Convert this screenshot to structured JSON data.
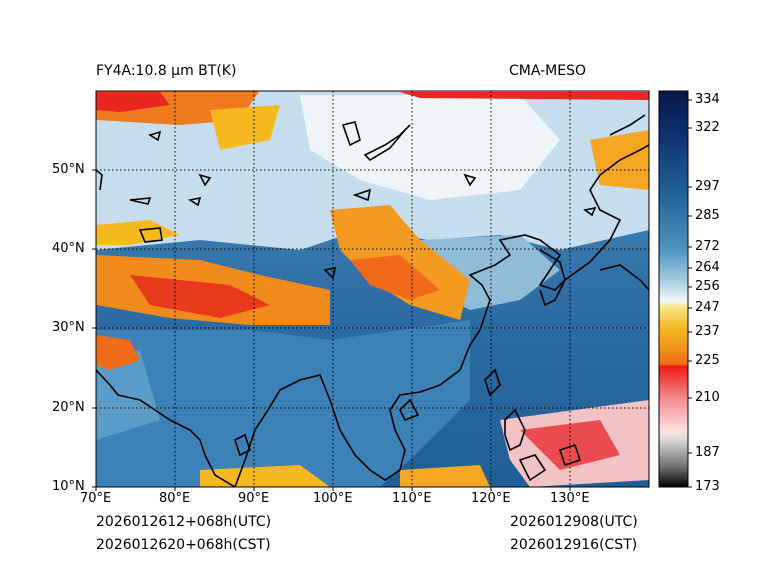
{
  "header": {
    "left_title": "FY4A:10.8 µm BT(K)",
    "right_title": "CMA-MESO"
  },
  "footer": {
    "init_utc": "2026012612+068h(UTC)",
    "init_cst": "2026012620+068h(CST)",
    "valid_utc": "2026012908(UTC)",
    "valid_cst": "2026012916(CST)"
  },
  "map": {
    "lon_labels": [
      "70°E",
      "80°E",
      "90°E",
      "100°E",
      "110°E",
      "120°E",
      "130°E"
    ],
    "lat_labels": [
      "50°N",
      "40°N",
      "30°N",
      "20°N",
      "10°N"
    ],
    "extent": {
      "lon_min": 70,
      "lon_max": 140,
      "lat_min": 10,
      "lat_max": 60
    }
  },
  "colorbar": {
    "ticks": [
      "334",
      "322",
      "297",
      "285",
      "272",
      "264",
      "256",
      "247",
      "237",
      "225",
      "210",
      "187",
      "173"
    ],
    "range": [
      173,
      337
    ]
  },
  "colors": {
    "ocean_deep": "#1f5f95",
    "ocean_mid": "#3b7fb5",
    "land_light": "#d8e8f2",
    "cloud_orange": "#f08a1a",
    "cloud_red": "#e8281e",
    "cloud_yellow": "#f5b820",
    "coast": "#000000"
  }
}
